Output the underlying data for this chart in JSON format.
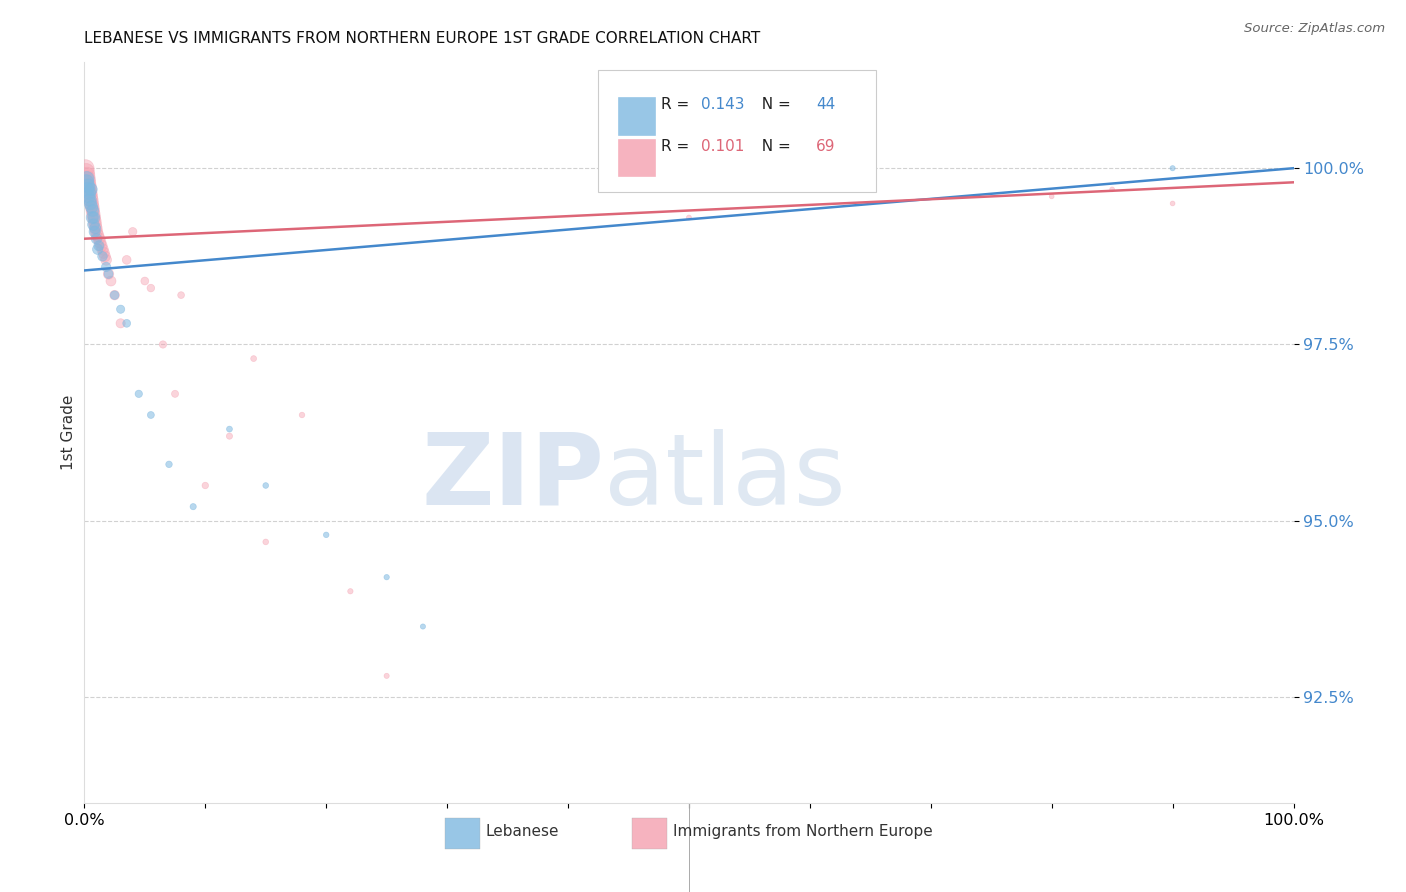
{
  "title": "LEBANESE VS IMMIGRANTS FROM NORTHERN EUROPE 1ST GRADE CORRELATION CHART",
  "source": "Source: ZipAtlas.com",
  "ylabel": "1st Grade",
  "y_tick_vals": [
    92.5,
    95.0,
    97.5,
    100.0
  ],
  "xlim": [
    0.0,
    100.0
  ],
  "ylim": [
    91.0,
    101.5
  ],
  "blue_R": "0.143",
  "blue_N": "44",
  "pink_R": "0.101",
  "pink_N": "69",
  "blue_color": "#7fb8e0",
  "pink_color": "#f4a0b0",
  "blue_line_color": "#4488cc",
  "pink_line_color": "#dd6677",
  "legend_label_blue": "Lebanese",
  "legend_label_pink": "Immigrants from Northern Europe",
  "blue_line_x0": 0.0,
  "blue_line_y0": 98.55,
  "blue_line_x1": 100.0,
  "blue_line_y1": 100.0,
  "pink_line_x0": 0.0,
  "pink_line_y0": 99.0,
  "pink_line_x1": 100.0,
  "pink_line_y1": 99.8,
  "blue_scatter_x": [
    0.15,
    0.2,
    0.25,
    0.3,
    0.35,
    0.4,
    0.45,
    0.5,
    0.55,
    0.6,
    0.65,
    0.7,
    0.75,
    0.8,
    0.85,
    0.9,
    1.0,
    1.1,
    1.2,
    1.5,
    1.8,
    2.0,
    2.5,
    3.0,
    3.5,
    4.5,
    5.5,
    7.0,
    9.0,
    12.0,
    15.0,
    20.0,
    25.0,
    28.0,
    90.0
  ],
  "blue_scatter_y": [
    99.8,
    99.85,
    99.7,
    99.75,
    99.6,
    99.65,
    99.55,
    99.5,
    99.7,
    99.45,
    99.3,
    99.4,
    99.2,
    99.3,
    99.1,
    99.15,
    99.0,
    98.85,
    98.9,
    98.75,
    98.6,
    98.5,
    98.2,
    98.0,
    97.8,
    96.8,
    96.5,
    95.8,
    95.2,
    96.3,
    95.5,
    94.8,
    94.2,
    93.5,
    100.0
  ],
  "blue_marker_sizes": [
    120,
    110,
    100,
    95,
    90,
    88,
    85,
    83,
    80,
    78,
    75,
    72,
    70,
    68,
    65,
    62,
    58,
    55,
    52,
    48,
    45,
    42,
    38,
    35,
    32,
    28,
    25,
    22,
    20,
    18,
    17,
    16,
    15,
    14,
    14
  ],
  "pink_scatter_x": [
    0.1,
    0.15,
    0.2,
    0.25,
    0.3,
    0.35,
    0.4,
    0.45,
    0.5,
    0.55,
    0.6,
    0.65,
    0.7,
    0.75,
    0.8,
    0.85,
    0.9,
    0.95,
    1.0,
    1.1,
    1.2,
    1.3,
    1.4,
    1.5,
    1.6,
    1.7,
    1.8,
    2.0,
    2.2,
    2.5,
    3.0,
    3.5,
    4.0,
    5.0,
    5.5,
    6.5,
    7.5,
    8.0,
    10.0,
    12.0,
    14.0,
    15.0,
    18.0,
    22.0,
    25.0,
    50.0,
    80.0,
    85.0,
    90.0
  ],
  "pink_scatter_y": [
    100.0,
    99.95,
    99.9,
    99.85,
    99.8,
    99.75,
    99.7,
    99.65,
    99.6,
    99.55,
    99.5,
    99.45,
    99.4,
    99.35,
    99.3,
    99.25,
    99.2,
    99.15,
    99.1,
    99.05,
    99.0,
    98.95,
    98.9,
    98.85,
    98.8,
    98.75,
    98.7,
    98.5,
    98.4,
    98.2,
    97.8,
    98.7,
    99.1,
    98.4,
    98.3,
    97.5,
    96.8,
    98.2,
    95.5,
    96.2,
    97.3,
    94.7,
    96.5,
    94.0,
    92.8,
    99.3,
    99.6,
    99.7,
    99.5
  ],
  "pink_marker_sizes": [
    150,
    140,
    135,
    130,
    125,
    120,
    115,
    110,
    108,
    105,
    100,
    98,
    95,
    92,
    90,
    88,
    85,
    82,
    80,
    78,
    75,
    72,
    70,
    68,
    65,
    62,
    60,
    56,
    52,
    48,
    44,
    40,
    36,
    32,
    30,
    28,
    26,
    24,
    22,
    20,
    18,
    17,
    16,
    15,
    14,
    13,
    12,
    12,
    12
  ],
  "watermark_color": "#c8d8ec",
  "watermark_color2": "#b8cce4",
  "grid_color": "#cccccc",
  "background_color": "#ffffff"
}
